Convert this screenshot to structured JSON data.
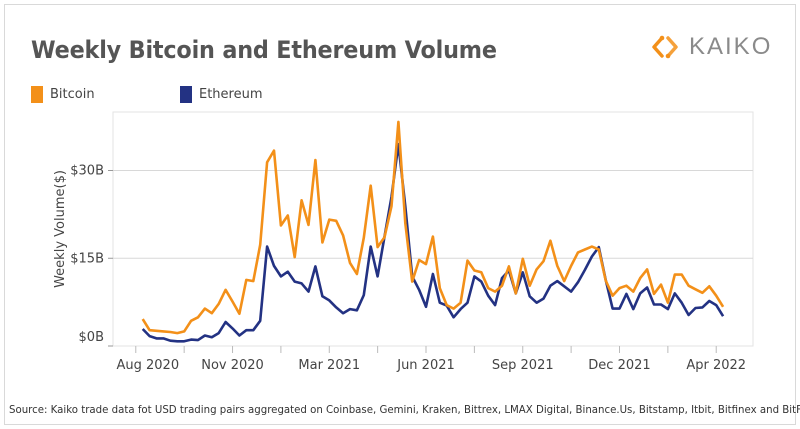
{
  "title": "Weekly Bitcoin and Ethereum Volume",
  "logo": {
    "text": "KAIKO",
    "icon": "kaiko-chevron-logo-icon",
    "color": "#F39019"
  },
  "source": "Source: Kaiko trade data fot USD trading pairs aggregated on Coinbase, Gemini, Kraken, Bittrex, LMAX Digital, Binance.Us, Bitstamp, Itbit, Bitfinex and BitFlyer.",
  "chart_data": {
    "type": "line",
    "title": "Weekly Bitcoin and Ethereum Volume",
    "xlabel": "",
    "ylabel": "Weekly Volume($)",
    "x_start": "2020-08-03",
    "x_frequency": "weekly",
    "ylim": [
      0,
      40
    ],
    "y_ticks": [
      {
        "value": 0,
        "label": "$0B"
      },
      {
        "value": 15,
        "label": "$15B"
      },
      {
        "value": 30,
        "label": "$30B"
      }
    ],
    "y_unit": "billion USD",
    "x_ticks": [
      {
        "date": "2020-07-27",
        "label": "Aug 2020"
      },
      {
        "date": "2020-09-14",
        "label": ""
      },
      {
        "date": "2020-11-02",
        "label": "Nov 2020"
      },
      {
        "date": "2020-12-21",
        "label": ""
      },
      {
        "date": "2021-02-08",
        "label": "Mar 2021"
      },
      {
        "date": "2021-03-29",
        "label": ""
      },
      {
        "date": "2021-05-17",
        "label": "Jun 2021"
      },
      {
        "date": "2021-07-05",
        "label": ""
      },
      {
        "date": "2021-08-23",
        "label": "Sep 2021"
      },
      {
        "date": "2021-10-11",
        "label": ""
      },
      {
        "date": "2021-11-29",
        "label": "Dec 2021"
      },
      {
        "date": "2022-01-17",
        "label": ""
      },
      {
        "date": "2022-03-07",
        "label": "Apr 2022"
      }
    ],
    "grid": "horizontal",
    "legend": "top-left",
    "series": [
      {
        "name": "Bitcoin",
        "color": "#F39019",
        "values": [
          4.6,
          2.7,
          2.6,
          2.5,
          2.4,
          2.2,
          2.5,
          4.3,
          4.9,
          6.4,
          5.6,
          7.2,
          9.6,
          7.6,
          5.5,
          11.3,
          11.1,
          17.3,
          31.4,
          33.4,
          20.6,
          22.3,
          15.2,
          24.9,
          20.7,
          31.8,
          17.7,
          21.6,
          21.4,
          18.9,
          14.2,
          12.3,
          18.5,
          27.4,
          16.9,
          18.6,
          23.9,
          38.3,
          21.0,
          11.0,
          14.7,
          14.0,
          18.7,
          9.9,
          7.0,
          6.4,
          7.4,
          14.6,
          12.9,
          12.6,
          9.9,
          9.3,
          10.3,
          13.6,
          9.0,
          14.9,
          10.3,
          13.1,
          14.5,
          18.0,
          13.7,
          11.1,
          13.7,
          16.0,
          16.5,
          17.0,
          16.5,
          11.2,
          8.6,
          9.9,
          10.3,
          9.3,
          11.6,
          13.1,
          8.9,
          10.5,
          7.4,
          12.2,
          12.2,
          10.3,
          9.7,
          9.1,
          10.2,
          8.6,
          6.7
        ]
      },
      {
        "name": "Ethereum",
        "color": "#233283",
        "values": [
          2.9,
          1.7,
          1.3,
          1.3,
          0.9,
          0.8,
          0.8,
          1.1,
          1.0,
          1.8,
          1.5,
          2.2,
          4.1,
          3.0,
          1.8,
          2.7,
          2.7,
          4.3,
          17.0,
          13.7,
          11.9,
          12.7,
          11.0,
          10.7,
          9.3,
          13.6,
          8.5,
          7.8,
          6.6,
          5.6,
          6.3,
          6.1,
          8.7,
          17.0,
          11.9,
          18.7,
          25.5,
          34.5,
          23.9,
          11.9,
          9.6,
          6.7,
          12.3,
          7.4,
          6.9,
          4.9,
          6.3,
          7.4,
          11.9,
          11.0,
          8.6,
          7.0,
          11.6,
          12.9,
          9.0,
          12.6,
          8.5,
          7.4,
          8.1,
          10.3,
          11.1,
          10.2,
          9.3,
          10.9,
          13.0,
          15.3,
          16.9,
          11.3,
          6.4,
          6.4,
          8.9,
          6.3,
          9.0,
          10.0,
          7.1,
          7.1,
          6.3,
          9.0,
          7.4,
          5.3,
          6.5,
          6.6,
          7.7,
          7.0,
          5.1
        ]
      }
    ]
  }
}
